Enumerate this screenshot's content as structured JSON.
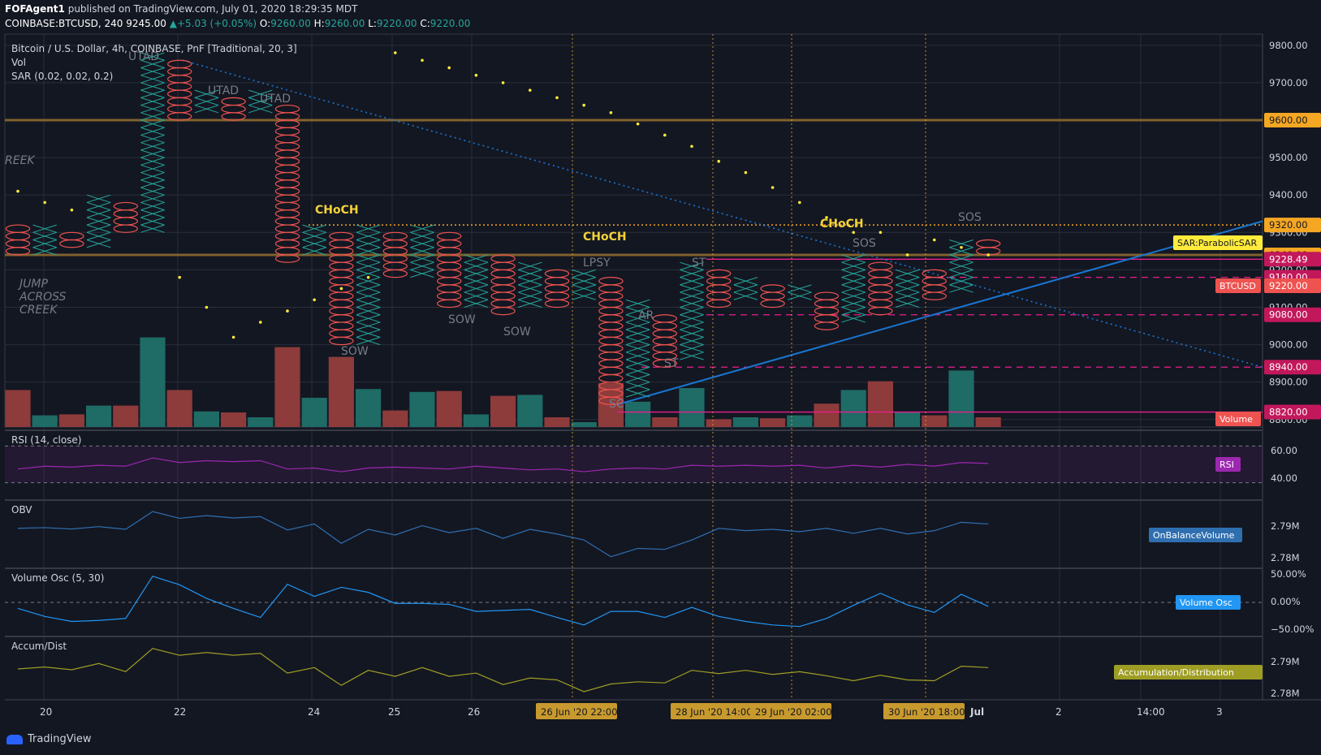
{
  "header": {
    "author": "FOFAgent1",
    "published_text": "published on TradingView.com, July 01, 2020 18:29:35 MDT",
    "symbol": "COINBASE:BTCUSD, 240",
    "last": "9245.00",
    "change": "+5.03 (+0.05%)",
    "o_label": "O:",
    "o": "9260.00",
    "h_label": "H:",
    "h": "9260.00",
    "l_label": "L:",
    "l": "9220.00",
    "c_label": "C:",
    "c": "9220.00"
  },
  "brand": {
    "name": "TradingView"
  },
  "chart_data": {
    "type": "pnf",
    "title": "Bitcoin / U.S. Dollar, 4h, COINBASE, PnF [Traditional, 20, 3]",
    "indicator_labels": [
      "Vol",
      "SAR (0.02, 0.02, 0.2)"
    ],
    "y_ticks": [
      8800,
      8900,
      9000,
      9100,
      9200,
      9300,
      9400,
      9500,
      9600,
      9700,
      9800
    ],
    "ylim": [
      8780,
      9830
    ],
    "x_labels": [
      "20",
      "22",
      "24",
      "25",
      "26",
      "2",
      "14:00",
      "3"
    ],
    "x_label_jul": "Jul",
    "time_markers": [
      "26 Jun '20   22:00",
      "28 Jun '20   14:00",
      "29 Jun '20   02:00",
      "30 Jun '20   18:00"
    ],
    "columns": [
      {
        "t": "O",
        "low": 9240,
        "high": 9320
      },
      {
        "t": "X",
        "low": 9240,
        "high": 9320
      },
      {
        "t": "O",
        "low": 9260,
        "high": 9300
      },
      {
        "t": "X",
        "low": 9260,
        "high": 9400
      },
      {
        "t": "O",
        "low": 9300,
        "high": 9380
      },
      {
        "t": "X",
        "low": 9300,
        "high": 9780
      },
      {
        "t": "O",
        "low": 9600,
        "high": 9760
      },
      {
        "t": "X",
        "low": 9620,
        "high": 9680
      },
      {
        "t": "O",
        "low": 9600,
        "high": 9660
      },
      {
        "t": "X",
        "low": 9620,
        "high": 9680
      },
      {
        "t": "O",
        "low": 9220,
        "high": 9640
      },
      {
        "t": "X",
        "low": 9240,
        "high": 9320
      },
      {
        "t": "O",
        "low": 9000,
        "high": 9300
      },
      {
        "t": "X",
        "low": 9000,
        "high": 9320
      },
      {
        "t": "O",
        "low": 9180,
        "high": 9300
      },
      {
        "t": "X",
        "low": 9180,
        "high": 9320
      },
      {
        "t": "O",
        "low": 9100,
        "high": 9300
      },
      {
        "t": "X",
        "low": 9100,
        "high": 9240
      },
      {
        "t": "O",
        "low": 9080,
        "high": 9240
      },
      {
        "t": "X",
        "low": 9100,
        "high": 9220
      },
      {
        "t": "O",
        "low": 9100,
        "high": 9200
      },
      {
        "t": "X",
        "low": 9120,
        "high": 9200
      },
      {
        "t": "O",
        "low": 8840,
        "high": 9180
      },
      {
        "t": "X",
        "low": 8860,
        "high": 9120
      },
      {
        "t": "O",
        "low": 8940,
        "high": 9080
      },
      {
        "t": "X",
        "low": 8960,
        "high": 9220
      },
      {
        "t": "O",
        "low": 9100,
        "high": 9200
      },
      {
        "t": "X",
        "low": 9120,
        "high": 9180
      },
      {
        "t": "O",
        "low": 9100,
        "high": 9160
      },
      {
        "t": "X",
        "low": 9120,
        "high": 9160
      },
      {
        "t": "O",
        "low": 9040,
        "high": 9140
      },
      {
        "t": "X",
        "low": 9060,
        "high": 9240
      },
      {
        "t": "O",
        "low": 9080,
        "high": 9220
      },
      {
        "t": "X",
        "low": 9100,
        "high": 9200
      },
      {
        "t": "O",
        "low": 9120,
        "high": 9200
      },
      {
        "t": "X",
        "low": 9140,
        "high": 9280
      },
      {
        "t": "O",
        "low": 9240,
        "high": 9280
      }
    ],
    "sar": [
      9410,
      9380,
      9360,
      null,
      null,
      null,
      9180,
      9100,
      9020,
      9060,
      9090,
      9120,
      9150,
      9180,
      9780,
      9760,
      9740,
      9720,
      9700,
      9680,
      9660,
      9640,
      9620,
      9590,
      9560,
      9530,
      9490,
      9460,
      9420,
      9380,
      9340,
      9300,
      9300,
      9240,
      9280,
      9260,
      9240
    ],
    "volume": [
      0.38,
      0.12,
      0.13,
      0.22,
      0.22,
      0.92,
      0.38,
      0.16,
      0.15,
      0.1,
      0.82,
      0.3,
      0.72,
      0.39,
      0.17,
      0.36,
      0.37,
      0.13,
      0.32,
      0.33,
      0.1,
      0.05,
      0.45,
      0.26,
      0.1,
      0.4,
      0.08,
      0.1,
      0.09,
      0.12,
      0.24,
      0.38,
      0.47,
      0.15,
      0.12,
      0.58,
      0.1
    ],
    "volume_dir": [
      "down",
      "up",
      "down",
      "up",
      "down",
      "up",
      "down",
      "up",
      "down",
      "up",
      "down",
      "up",
      "down",
      "up",
      "down",
      "up",
      "down",
      "up",
      "down",
      "up",
      "down",
      "up",
      "down",
      "up",
      "down",
      "up",
      "down",
      "up",
      "down",
      "up",
      "down",
      "up",
      "down",
      "up",
      "down",
      "up",
      "down"
    ],
    "levels": [
      {
        "price": 9600,
        "kind": "orange",
        "label": "9600.00"
      },
      {
        "price": 9320,
        "kind": "dotted",
        "label": "9320.00"
      },
      {
        "price": 9240,
        "kind": "orange",
        "label": "9240.00"
      },
      {
        "price": 9228.49,
        "kind": "pink",
        "label": "9228.49"
      },
      {
        "price": 9180,
        "kind": "dashed",
        "label": "9180.00"
      },
      {
        "price": 9080,
        "kind": "dashed",
        "label": "9080.00"
      },
      {
        "price": 8940,
        "kind": "dashed",
        "label": "8940.00"
      },
      {
        "price": 8820,
        "kind": "pink",
        "label": "8820.00"
      }
    ],
    "price_tags": [
      {
        "label": "SAR:ParabolicSAR",
        "kind": "yellow"
      },
      {
        "label": "BTCUSD",
        "value": "9220.00",
        "kind": "red"
      },
      {
        "label": "Volume",
        "kind": "red"
      }
    ],
    "annotations": [
      "UTAD",
      "UTAD",
      "UTAD",
      "REEK",
      "JUMP",
      "ACROSS",
      "CREEK",
      "CHoCH",
      "SOW",
      "SOW",
      "SOW",
      "CHoCH",
      "LPSY",
      "AR",
      "ST",
      "ST",
      "SC",
      "CHoCH",
      "SOS",
      "SOS"
    ],
    "panels": {
      "rsi": {
        "title": "RSI (14, close)",
        "ticks": [
          "60.00",
          "40.00"
        ],
        "tag": "RSI",
        "values": [
          45,
          48,
          47,
          49,
          48,
          57,
          52,
          54,
          53,
          54,
          45,
          46,
          42,
          46,
          47,
          46,
          45,
          48,
          46,
          44,
          45,
          42,
          45,
          46,
          45,
          49,
          48,
          49,
          48,
          49,
          46,
          49,
          47,
          50,
          48,
          52,
          51
        ]
      },
      "obv": {
        "title": "OBV",
        "ticks": [
          "2.79M",
          "2.78M"
        ],
        "tag": "OnBalanceVolume",
        "values": [
          2.7855,
          2.7857,
          2.7853,
          2.786,
          2.7852,
          2.7905,
          2.7885,
          2.7893,
          2.7886,
          2.789,
          2.785,
          2.7868,
          2.781,
          2.7852,
          2.7835,
          2.7863,
          2.7842,
          2.7855,
          2.7825,
          2.7852,
          2.7838,
          2.782,
          2.777,
          2.7795,
          2.7792,
          2.782,
          2.7855,
          2.7848,
          2.7852,
          2.7845,
          2.7855,
          2.784,
          2.7855,
          2.7838,
          2.7848,
          2.7873,
          2.7868
        ]
      },
      "vosc": {
        "title": "Volume Osc (5, 30)",
        "ticks": [
          "50.00%",
          "0.00%",
          "−50.00%"
        ],
        "tag": "Volume Osc",
        "values": [
          -12,
          -28,
          -38,
          -36,
          -32,
          52,
          35,
          8,
          -12,
          -30,
          36,
          12,
          30,
          20,
          -2,
          -2,
          -4,
          -18,
          -16,
          -14,
          -30,
          -45,
          -18,
          -18,
          -30,
          -10,
          -28,
          -38,
          -45,
          -48,
          -32,
          -6,
          18,
          -5,
          -20,
          16,
          -8
        ]
      },
      "ad": {
        "title": "Accum/Dist",
        "ticks": [
          "2.79M",
          "2.78M"
        ],
        "tag": "Accumulation/Distribution",
        "values": [
          2.7855,
          2.7862,
          2.7852,
          2.7875,
          2.7845,
          2.793,
          2.7905,
          2.7915,
          2.7905,
          2.7912,
          2.784,
          2.786,
          2.7795,
          2.785,
          2.7828,
          2.786,
          2.7828,
          2.784,
          2.7798,
          2.7822,
          2.7815,
          2.7772,
          2.78,
          2.7808,
          2.7804,
          2.785,
          2.7838,
          2.785,
          2.7835,
          2.7845,
          2.783,
          2.7812,
          2.7832,
          2.7815,
          2.7812,
          2.7865,
          2.786
        ]
      }
    }
  },
  "colors": {
    "bg": "#131722",
    "grid": "#2a2e39",
    "up": "#26a69a",
    "down": "#ef5350",
    "vol_up": "#1f6b66",
    "vol_down": "#8e3b3b",
    "sar": "#ffeb3b",
    "orange": "#8b6a2e",
    "pink": "#e91e8c",
    "trend": "#1976d2",
    "rsi": "#9c27b0",
    "obv": "#2f6fb0",
    "vosc": "#2196f3",
    "ad": "#9e9d24",
    "annot": "#787b86",
    "choch": "#f5d238"
  }
}
